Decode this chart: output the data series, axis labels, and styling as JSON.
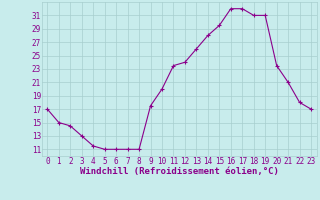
{
  "hours": [
    0,
    1,
    2,
    3,
    4,
    5,
    6,
    7,
    8,
    9,
    10,
    11,
    12,
    13,
    14,
    15,
    16,
    17,
    18,
    19,
    20,
    21,
    22,
    23
  ],
  "values": [
    17,
    15,
    14.5,
    13,
    11.5,
    11,
    11,
    11,
    11,
    17.5,
    20,
    23.5,
    24,
    26,
    28,
    29.5,
    32,
    32,
    31,
    31,
    23.5,
    21,
    18,
    17
  ],
  "line_color": "#8b008b",
  "marker": "+",
  "marker_size": 3,
  "bg_color": "#c8ecec",
  "grid_color": "#a8cece",
  "xlabel": "Windchill (Refroidissement éolien,°C)",
  "ylabel_ticks": [
    11,
    13,
    15,
    17,
    19,
    21,
    23,
    25,
    27,
    29,
    31
  ],
  "xlim": [
    -0.5,
    23.5
  ],
  "ylim": [
    10.0,
    33.0
  ],
  "xlabel_fontsize": 6.5,
  "tick_fontsize": 5.5,
  "title": ""
}
